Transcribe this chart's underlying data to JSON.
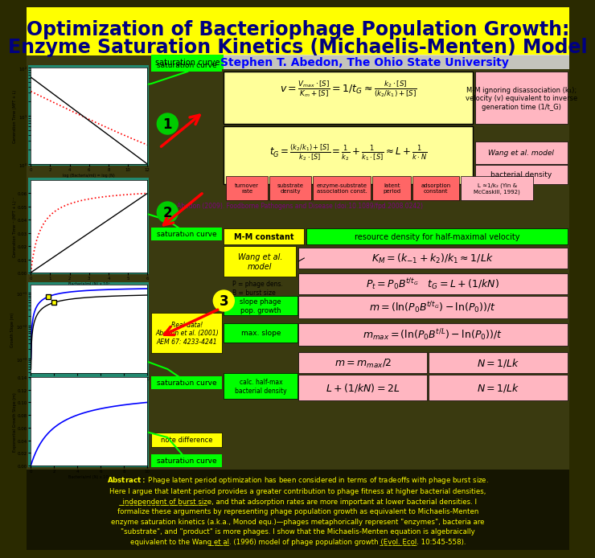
{
  "title": "Optimization of Bacteriophage Population Growth:\nEnzyme Saturation Kinetics (Michaelis-Menten) Model",
  "title_bg": "#FFFF00",
  "title_color": "#000080",
  "title_fontsize": 18,
  "author": "Stephen T. Abedon, The Ohio State University",
  "author_color": "#0000FF",
  "bg_color": "#2a2a00",
  "panel_bg": "#00FFFF",
  "abstract_text": "Abstract: Phage latent period optimization has been considered in terms of tradeoffs with phage burst size. Here I argue that latent period provides a greater contribution to phage fitness at higher bacterial densities, independent of burst size, and that adsorption rates are more important at lower bacterial densities. I formalize these arguments by representing phage population growth as equivalent to Michaelis-Menten enzyme saturation kinetics (a.k.a., Monod equ.)—phages metaphorically represent \"enzymes\", bacteria are \"substrate\", and \"product\" is more phages. I show that the Michaelis-Menten equation is algebraically equivalent to the Wang et al. (1996) model of phage population growth (Evol. Ecol. 10:545-558).",
  "abstract_color": "#FFFF00",
  "abstract_bg": "#1a1a00",
  "formula1": "$v = \\frac{V_{max} \\cdot [S]}{K_m + [S]} = 1/t_G \\approx \\frac{k_2 \\cdot [S]}{(k_2/k_1)+[S]}$",
  "formula2": "$t_G = \\frac{(k_2/k_1)+[S]}{k_2 \\cdot [S]} = \\frac{1}{k_2} + \\frac{1}{k_1 \\cdot [S]} \\approx L + \\frac{1}{k \\cdot N}$",
  "formula3a": "$K_M = (k_{-1}+k_2)/k_1 \\approx 1/Lk$",
  "formula3b": "$P_t = P_0 B^{t/t_G} \\quad t_G = L + (1/kN)$",
  "formula3c": "$m = (\\ln(P_0 B^{t/t_G}) - \\ln(P_0))/t$",
  "formula3d": "$m_{max} = (\\ln(P_0 B^{t/L}) - \\ln(P_0))/t$",
  "formula3e": "$m = m_{max}/2 \\qquad N = 1/Lk$",
  "formula3f": "$L + (1/kN) = 2L \\qquad N = 1/Lk$",
  "note1": "M-M ignoring disassociation (k₁);\nvelocity (v) equivalent to inverse\ngeneration time (1/tᴳ)",
  "note2": "Wang et al. model",
  "note3": "bacterial density",
  "note4": "L ≈1/k₂ (Yin &\nMcCaskill, 1992)",
  "label1": "turnover\nrate",
  "label2": "substrate\ndensity",
  "label3": "enzyme-substrate\nassociation const.",
  "label4": "latent\nperiod",
  "label5": "adsorption\nconstant",
  "label6": "L ≈1/k₂ (Yin &\nMcCaskill, 1992)",
  "citation": "Abedon (2009). Foodborne Pathogens and Disease (doi:10.1089/fpd.2008.0242)",
  "sat_curve_label": "saturation curve",
  "sat_curve_color": "#00FF00",
  "mm_constant_label": "M-M constant",
  "mm_constant_color": "#FFFF00",
  "resource_label": "resource density for half-maximal velocity",
  "resource_color": "#00FF00",
  "wang_label": "Wang et al.\nmodel",
  "wang_color": "#FFFF00",
  "real_data_label": "Real data!\nAbedon et al. (2001)\nAEM 67: 4233-4241",
  "real_data_color": "#FFFF00",
  "note_diff_label": "note difference",
  "note_diff_color": "#FFFF00",
  "formula_bg1": "#FFFF99",
  "formula_bg2": "#FFFF99",
  "formula_bg3": "#FF9999",
  "formula_bg4": "#FF99FF",
  "circle1_color": "#00CC00",
  "circle2_color": "#00CC00",
  "circle3_color": "#FFFF00",
  "circle4_color": "#FFFF00",
  "arrow_color": "#FF0000"
}
